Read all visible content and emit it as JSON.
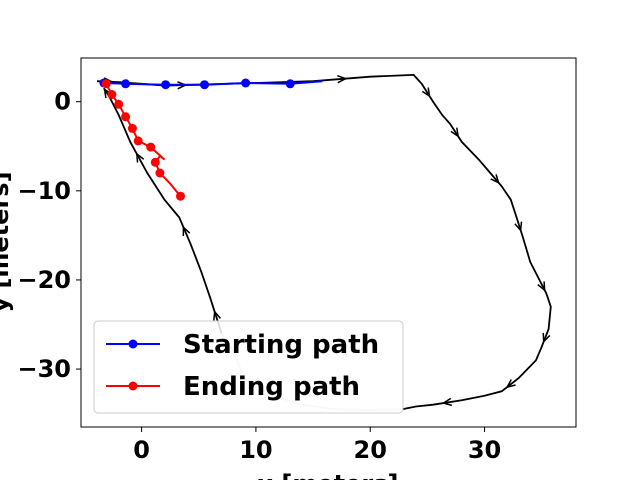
{
  "chart_data": {
    "type": "line",
    "title": "",
    "xlabel": "x  [meters]",
    "ylabel": "y  [meters]",
    "xlim": [
      -5.3,
      38.0
    ],
    "ylim": [
      -36.5,
      4.9
    ],
    "xticks": [
      0,
      10,
      20,
      30
    ],
    "yticks": [
      0,
      -10,
      -20,
      -30
    ],
    "xtick_labels": [
      "0",
      "10",
      "20",
      "30"
    ],
    "ytick_labels": [
      "0",
      "−10",
      "−20",
      "−30"
    ],
    "grid": false,
    "legend_position": "lower-left",
    "colors": {
      "trajectory": "#000000",
      "trajectory_faint": "#cccccc",
      "starting_path": "#0000ff",
      "ending_path": "#ff0000"
    },
    "trajectory": {
      "x": [
        -3.9,
        -2.0,
        0.0,
        2.0,
        5.0,
        10.0,
        15.0,
        20.0,
        23.8,
        24.5,
        25.5,
        26.3,
        27.0,
        28.0,
        29.5,
        30.5,
        31.5,
        32.3,
        32.8,
        33.3,
        34.0,
        34.8,
        35.4,
        35.8,
        35.6,
        35.0,
        34.5,
        33.0,
        31.5,
        30.0,
        28.0,
        25.5,
        24.0,
        22.8
      ],
      "y": [
        2.3,
        2.2,
        2.0,
        1.8,
        1.9,
        2.1,
        2.3,
        2.8,
        3.0,
        2.0,
        0.0,
        -1.5,
        -2.5,
        -4.5,
        -6.5,
        -8.0,
        -9.5,
        -11.0,
        -13.0,
        -15.0,
        -18.0,
        -20.0,
        -21.5,
        -23.0,
        -25.5,
        -27.5,
        -29.0,
        -31.0,
        -32.5,
        -33.0,
        -33.5,
        -34.0,
        -34.2,
        -34.5
      ],
      "faint_x": [
        22.8,
        20.0,
        17.0,
        14.0,
        11.5,
        9.0,
        8.0,
        7.0
      ],
      "faint_y": [
        -34.5,
        -34.6,
        -34.5,
        -34.0,
        -33.0,
        -31.0,
        -28.0,
        -26.0
      ],
      "return_x": [
        7.0,
        6.0,
        5.2,
        4.3,
        3.3,
        2.0,
        0.5,
        -1.0,
        -2.0,
        -2.8,
        -3.3
      ],
      "return_y": [
        -26.0,
        -22.0,
        -19.0,
        -16.0,
        -13.0,
        -11.0,
        -8.0,
        -4.5,
        -1.5,
        0.5,
        1.5
      ]
    },
    "series": [
      {
        "name": "Starting path",
        "color": "#0000ff",
        "x": [
          -3.3,
          -1.4,
          2.1,
          5.5,
          9.1,
          13.0
        ],
        "y": [
          2.1,
          2.0,
          1.9,
          1.9,
          2.1,
          2.0
        ],
        "line_x": [
          -3.3,
          -1.4,
          2.1,
          5.5,
          9.1,
          13.0,
          15.8
        ],
        "line_y": [
          2.1,
          2.0,
          1.9,
          1.9,
          2.1,
          2.0,
          2.3
        ]
      },
      {
        "name": "Ending path",
        "color": "#ff0000",
        "x": [
          -3.1,
          -2.6,
          -2.0,
          -1.4,
          -0.8,
          -0.3,
          0.8,
          1.2,
          1.6,
          3.4
        ],
        "y": [
          2.0,
          0.8,
          -0.3,
          -1.7,
          -3.0,
          -4.4,
          -5.1,
          -6.8,
          -8.0,
          -10.6
        ],
        "line_x": [
          -3.1,
          -2.6,
          -2.0,
          -1.4,
          -0.8,
          -0.3,
          0.8,
          2.0,
          1.6,
          1.2,
          1.6,
          2.5,
          3.4
        ],
        "line_y": [
          2.0,
          0.8,
          -0.3,
          -1.7,
          -3.0,
          -4.4,
          -5.1,
          -6.5,
          -6.1,
          -6.8,
          -8.0,
          -9.2,
          -10.6
        ]
      }
    ]
  }
}
